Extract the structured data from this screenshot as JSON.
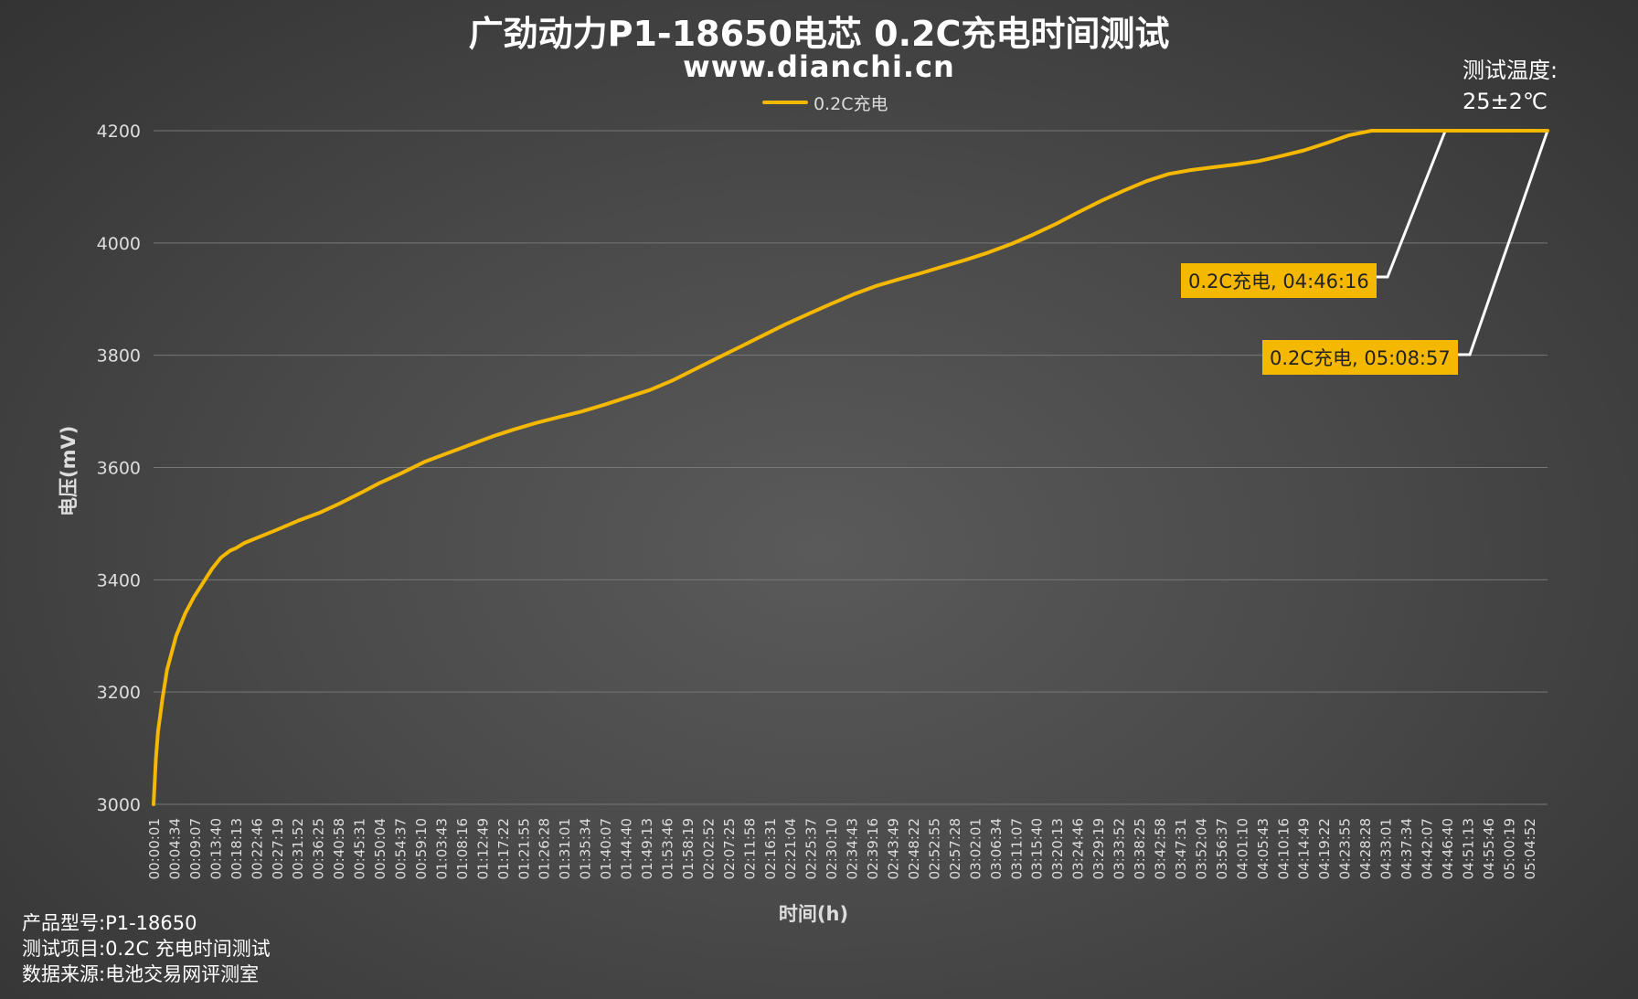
{
  "title": "广劲动力P1-18650电芯 0.2C充电时间测试",
  "subtitle": "www.dianchi.cn",
  "legend": {
    "label": "0.2C充电"
  },
  "test_temperature": {
    "label": "测试温度:",
    "value": "25±2℃"
  },
  "footer": {
    "model": "产品型号:P1-18650",
    "item": "测试项目:0.2C 充电时间测试",
    "source": "数据来源:电池交易网评测室"
  },
  "annotations": [
    {
      "text": "0.2C充电, 04:46:16"
    },
    {
      "text": "0.2C充电, 05:08:57"
    }
  ],
  "colors": {
    "series": "#f5b800",
    "leader": "#ffffff",
    "grid": "#777777"
  },
  "chart_data": {
    "type": "line",
    "xlabel": "时间(h)",
    "ylabel": "电压(mV)",
    "ylim": [
      3000,
      4200
    ],
    "yticks": [
      3000,
      3200,
      3400,
      3600,
      3800,
      4000,
      4200
    ],
    "grid": "horizontal",
    "legend_position": "top",
    "xtick_labels": [
      "00:00:01",
      "00:04:34",
      "00:09:07",
      "00:13:40",
      "00:18:13",
      "00:22:46",
      "00:27:19",
      "00:31:52",
      "00:36:25",
      "00:40:58",
      "00:45:31",
      "00:50:04",
      "00:54:37",
      "00:59:10",
      "01:03:43",
      "01:08:16",
      "01:12:49",
      "01:17:22",
      "01:21:55",
      "01:26:28",
      "01:31:01",
      "01:35:34",
      "01:40:07",
      "01:44:40",
      "01:49:13",
      "01:53:46",
      "01:58:19",
      "02:02:52",
      "02:07:25",
      "02:11:58",
      "02:16:31",
      "02:21:04",
      "02:25:37",
      "02:30:10",
      "02:34:43",
      "02:39:16",
      "02:43:49",
      "02:48:22",
      "02:52:55",
      "02:57:28",
      "03:02:01",
      "03:06:34",
      "03:11:07",
      "03:15:40",
      "03:20:13",
      "03:24:46",
      "03:29:19",
      "03:33:52",
      "03:38:25",
      "03:42:58",
      "03:47:31",
      "03:52:04",
      "03:56:37",
      "04:01:10",
      "04:05:43",
      "04:10:16",
      "04:14:49",
      "04:19:22",
      "04:23:55",
      "04:28:28",
      "04:33:01",
      "04:37:34",
      "04:42:07",
      "04:46:40",
      "04:51:13",
      "04:55:46",
      "05:00:19",
      "05:04:52"
    ],
    "series": [
      {
        "name": "0.2C充电",
        "x_minutes": [
          0,
          0.5,
          1,
          2,
          3,
          5,
          7,
          9,
          11,
          13,
          15,
          17,
          18.2,
          20,
          23,
          27,
          32,
          37,
          41,
          46,
          50,
          55,
          60,
          65,
          70,
          75,
          80,
          85,
          90,
          95,
          100,
          105,
          110,
          115,
          120,
          125,
          130,
          135,
          140,
          145,
          150,
          155,
          160,
          165,
          170,
          175,
          180,
          185,
          190,
          195,
          200,
          205,
          210,
          215,
          220,
          225,
          230,
          235,
          240,
          245,
          250,
          255,
          260,
          265,
          270,
          275,
          280,
          286.3,
          290,
          300,
          308.95
        ],
        "y": [
          3000,
          3080,
          3130,
          3190,
          3240,
          3300,
          3340,
          3370,
          3395,
          3420,
          3440,
          3452,
          3456,
          3465,
          3475,
          3488,
          3505,
          3520,
          3535,
          3555,
          3572,
          3590,
          3610,
          3625,
          3640,
          3655,
          3668,
          3680,
          3690,
          3700,
          3712,
          3725,
          3738,
          3755,
          3775,
          3795,
          3815,
          3835,
          3855,
          3873,
          3891,
          3908,
          3923,
          3935,
          3946,
          3958,
          3970,
          3983,
          3998,
          4015,
          4034,
          4055,
          4075,
          4093,
          4110,
          4123,
          4130,
          4135,
          4140,
          4146,
          4155,
          4165,
          4178,
          4192,
          4200,
          4200,
          4200,
          4200,
          4200,
          4200,
          4200
        ]
      }
    ]
  }
}
